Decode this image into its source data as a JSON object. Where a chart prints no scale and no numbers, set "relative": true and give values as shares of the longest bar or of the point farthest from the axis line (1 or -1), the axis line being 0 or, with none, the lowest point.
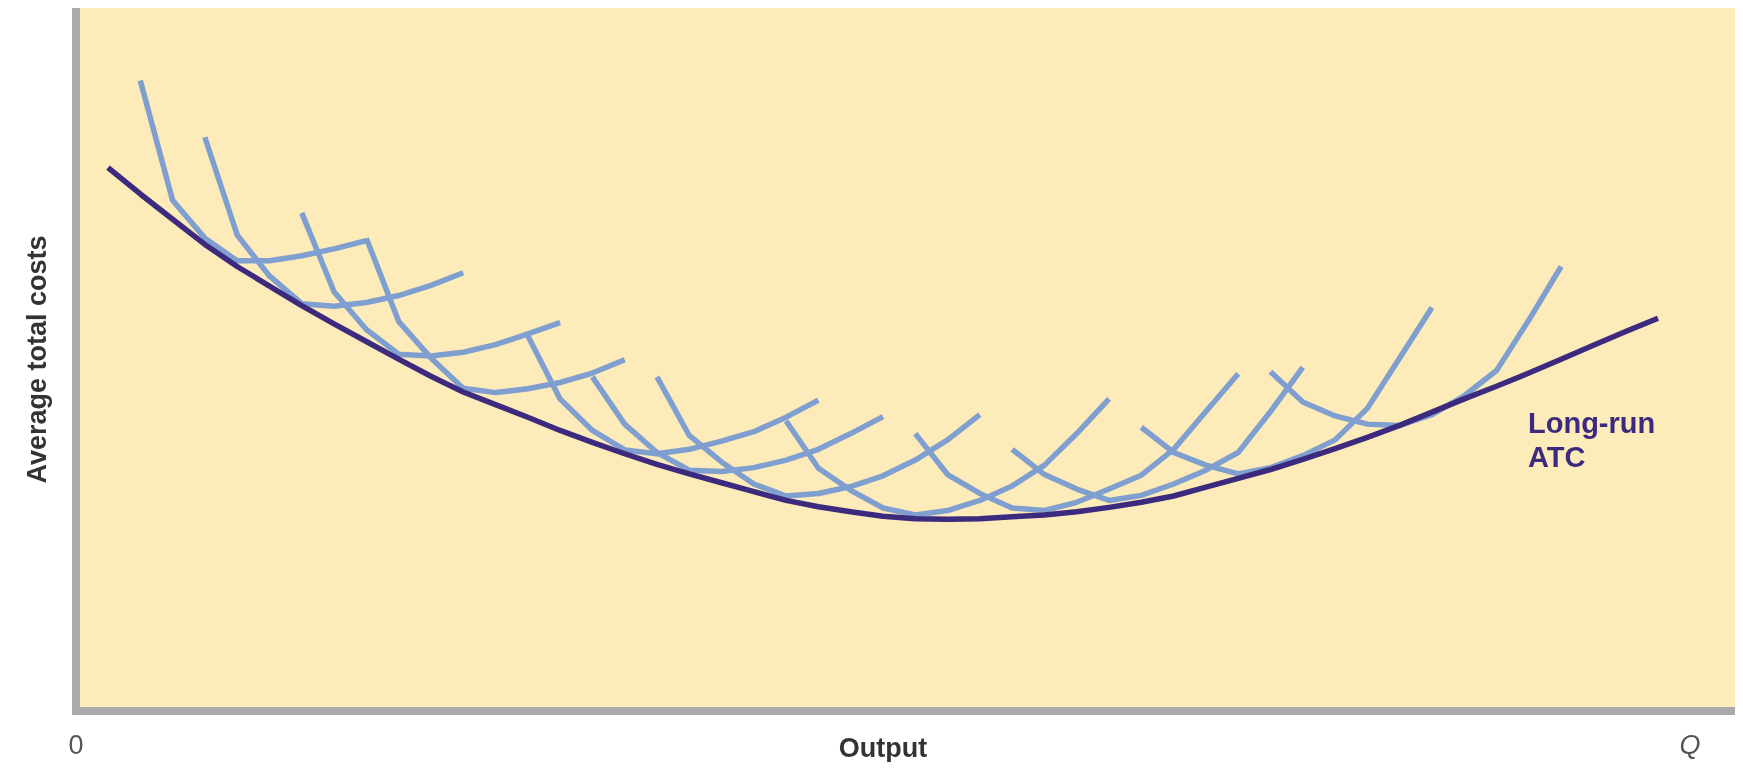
{
  "chart_data": {
    "type": "line",
    "relative": true,
    "xlabel": "Output",
    "ylabel": "Average total costs",
    "annotations": [
      "0",
      "Q"
    ],
    "legend": false,
    "marker": "none",
    "line_style": "solid",
    "categories": [
      null,
      null,
      null,
      null,
      null,
      null,
      null,
      null,
      null,
      null,
      null,
      null,
      null,
      null,
      null,
      null,
      null,
      null,
      null,
      null,
      null,
      null,
      null,
      null,
      null,
      null,
      null,
      null,
      null,
      null,
      null,
      null,
      null,
      null,
      null,
      null,
      null,
      null,
      null,
      null,
      null,
      null,
      null,
      null,
      null,
      null,
      null,
      null,
      null
    ],
    "series": [
      {
        "color": "#7f9fd0",
        "values": [
          null,
          1.0,
          0.81,
          0.75,
          0.714,
          0.714,
          0.722,
          0.733,
          0.746,
          null,
          null,
          null,
          null,
          null,
          null,
          null,
          null,
          null,
          null,
          null,
          null,
          null,
          null,
          null,
          null,
          null,
          null,
          null,
          null,
          null,
          null,
          null,
          null,
          null,
          null,
          null,
          null,
          null,
          null,
          null,
          null,
          null,
          null,
          null,
          null,
          null,
          null,
          null,
          null
        ]
      },
      {
        "color": "#7f9fd0",
        "values": [
          null,
          null,
          null,
          0.91,
          0.755,
          0.69,
          0.646,
          0.642,
          0.648,
          0.659,
          0.675,
          0.695,
          null,
          null,
          null,
          null,
          null,
          null,
          null,
          null,
          null,
          null,
          null,
          null,
          null,
          null,
          null,
          null,
          null,
          null,
          null,
          null,
          null,
          null,
          null,
          null,
          null,
          null,
          null,
          null,
          null,
          null,
          null,
          null,
          null,
          null,
          null,
          null,
          null
        ]
      },
      {
        "color": "#7f9fd0",
        "values": [
          null,
          null,
          null,
          null,
          null,
          null,
          0.79,
          0.665,
          0.605,
          0.566,
          0.563,
          0.569,
          0.581,
          0.598,
          0.616,
          null,
          null,
          null,
          null,
          null,
          null,
          null,
          null,
          null,
          null,
          null,
          null,
          null,
          null,
          null,
          null,
          null,
          null,
          null,
          null,
          null,
          null,
          null,
          null,
          null,
          null,
          null,
          null,
          null,
          null,
          null,
          null,
          null,
          null
        ]
      },
      {
        "color": "#7f9fd0",
        "values": [
          null,
          null,
          null,
          null,
          null,
          null,
          null,
          null,
          0.75,
          0.618,
          0.56,
          0.512,
          0.505,
          0.511,
          0.521,
          0.536,
          0.557,
          null,
          null,
          null,
          null,
          null,
          null,
          null,
          null,
          null,
          null,
          null,
          null,
          null,
          null,
          null,
          null,
          null,
          null,
          null,
          null,
          null,
          null,
          null,
          null,
          null,
          null,
          null,
          null,
          null,
          null,
          null,
          null
        ]
      },
      {
        "color": "#7f9fd0",
        "values": [
          null,
          null,
          null,
          null,
          null,
          null,
          null,
          null,
          null,
          null,
          null,
          null,
          null,
          0.595,
          0.495,
          0.445,
          0.414,
          0.408,
          0.415,
          0.428,
          0.443,
          0.466,
          0.493,
          null,
          null,
          null,
          null,
          null,
          null,
          null,
          null,
          null,
          null,
          null,
          null,
          null,
          null,
          null,
          null,
          null,
          null,
          null,
          null,
          null,
          null,
          null,
          null,
          null,
          null
        ]
      },
      {
        "color": "#7f9fd0",
        "values": [
          null,
          null,
          null,
          null,
          null,
          null,
          null,
          null,
          null,
          null,
          null,
          null,
          null,
          null,
          null,
          0.53,
          0.455,
          0.41,
          0.382,
          0.38,
          0.386,
          0.398,
          0.415,
          0.44,
          0.467,
          null,
          null,
          null,
          null,
          null,
          null,
          null,
          null,
          null,
          null,
          null,
          null,
          null,
          null,
          null,
          null,
          null,
          null,
          null,
          null,
          null,
          null,
          null,
          null
        ]
      },
      {
        "color": "#7f9fd0",
        "values": [
          null,
          null,
          null,
          null,
          null,
          null,
          null,
          null,
          null,
          null,
          null,
          null,
          null,
          null,
          null,
          null,
          null,
          0.53,
          0.437,
          0.395,
          0.36,
          0.341,
          0.345,
          0.356,
          0.373,
          0.398,
          0.43,
          0.47,
          null,
          null,
          null,
          null,
          null,
          null,
          null,
          null,
          null,
          null,
          null,
          null,
          null,
          null,
          null,
          null,
          null,
          null,
          null,
          null,
          null
        ]
      },
      {
        "color": "#7f9fd0",
        "values": [
          null,
          null,
          null,
          null,
          null,
          null,
          null,
          null,
          null,
          null,
          null,
          null,
          null,
          null,
          null,
          null,
          null,
          null,
          null,
          null,
          null,
          0.46,
          0.385,
          0.35,
          0.322,
          0.311,
          0.318,
          0.334,
          0.357,
          0.39,
          0.44,
          0.495,
          null,
          null,
          null,
          null,
          null,
          null,
          null,
          null,
          null,
          null,
          null,
          null,
          null,
          null,
          null,
          null,
          null
        ]
      },
      {
        "color": "#7f9fd0",
        "values": [
          null,
          null,
          null,
          null,
          null,
          null,
          null,
          null,
          null,
          null,
          null,
          null,
          null,
          null,
          null,
          null,
          null,
          null,
          null,
          null,
          null,
          null,
          null,
          null,
          null,
          0.44,
          0.375,
          0.345,
          0.322,
          0.318,
          0.331,
          0.352,
          0.374,
          0.415,
          0.475,
          0.535,
          null,
          null,
          null,
          null,
          null,
          null,
          null,
          null,
          null,
          null,
          null,
          null,
          null
        ]
      },
      {
        "color": "#7f9fd0",
        "values": [
          null,
          null,
          null,
          null,
          null,
          null,
          null,
          null,
          null,
          null,
          null,
          null,
          null,
          null,
          null,
          null,
          null,
          null,
          null,
          null,
          null,
          null,
          null,
          null,
          null,
          null,
          null,
          null,
          0.415,
          0.375,
          0.352,
          0.334,
          0.342,
          0.36,
          0.382,
          0.41,
          0.475,
          0.545,
          null,
          null,
          null,
          null,
          null,
          null,
          null,
          null,
          null,
          null,
          null
        ]
      },
      {
        "color": "#7f9fd0",
        "values": [
          null,
          null,
          null,
          null,
          null,
          null,
          null,
          null,
          null,
          null,
          null,
          null,
          null,
          null,
          null,
          null,
          null,
          null,
          null,
          null,
          null,
          null,
          null,
          null,
          null,
          null,
          null,
          null,
          null,
          null,
          null,
          null,
          0.45,
          0.41,
          0.39,
          0.376,
          0.386,
          0.405,
          0.43,
          0.48,
          0.56,
          0.64,
          null,
          null,
          null,
          null,
          null,
          null,
          null
        ]
      },
      {
        "color": "#7f9fd0",
        "values": [
          null,
          null,
          null,
          null,
          null,
          null,
          null,
          null,
          null,
          null,
          null,
          null,
          null,
          null,
          null,
          null,
          null,
          null,
          null,
          null,
          null,
          null,
          null,
          null,
          null,
          null,
          null,
          null,
          null,
          null,
          null,
          null,
          null,
          null,
          null,
          null,
          0.538,
          0.49,
          0.468,
          0.455,
          0.453,
          0.47,
          0.5,
          0.54,
          0.62,
          0.705,
          null,
          null,
          null
        ]
      },
      {
        "name": "Long-run ATC",
        "color": "#3b2a7e",
        "values": [
          0.862,
          0.82,
          0.78,
          0.74,
          0.705,
          0.674,
          0.643,
          0.614,
          0.586,
          0.558,
          0.531,
          0.506,
          0.486,
          0.466,
          0.445,
          0.426,
          0.408,
          0.391,
          0.376,
          0.362,
          0.348,
          0.334,
          0.324,
          0.316,
          0.309,
          0.305,
          0.304,
          0.305,
          0.308,
          0.311,
          0.316,
          0.323,
          0.331,
          0.341,
          0.355,
          0.369,
          0.383,
          0.399,
          0.416,
          0.434,
          0.453,
          0.474,
          0.495,
          0.515,
          0.536,
          0.558,
          0.58,
          0.602,
          0.623
        ]
      }
    ]
  }
}
